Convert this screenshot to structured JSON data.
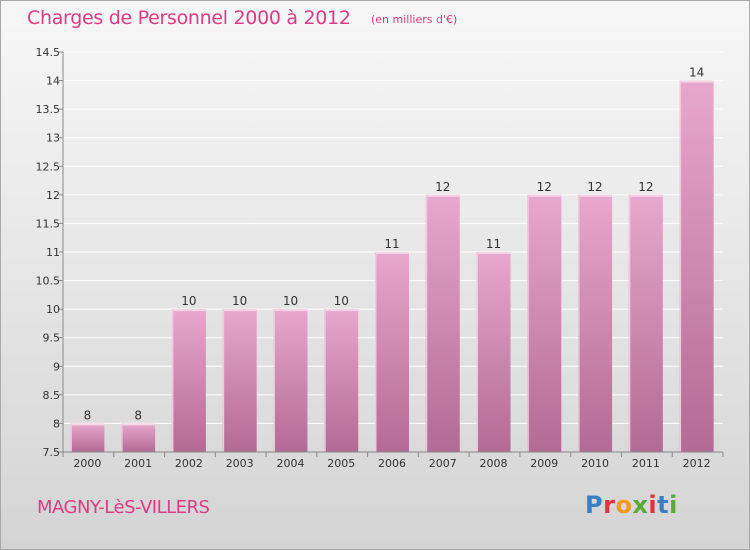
{
  "header": {
    "title": "Charges de Personnel 2000 à 2012",
    "unit": "(en milliers d'€)"
  },
  "footer": {
    "commune": "MAGNY-LèS-VILLERS",
    "logo_text": "Proxiti",
    "logo_colors": [
      "#3a7fc4",
      "#e5303f",
      "#f39a1e",
      "#5aaa3a",
      "#e5303f",
      "#3a7fc4",
      "#5aaa3a"
    ]
  },
  "colors": {
    "title": "#de3b84",
    "bar_top": "#e8a7cc",
    "bar_bottom": "#b26b94",
    "bar_highlight": "#f4d3e6"
  },
  "chart_data": {
    "type": "bar",
    "title": "Charges de Personnel 2000 à 2012",
    "categories": [
      "2000",
      "2001",
      "2002",
      "2003",
      "2004",
      "2005",
      "2006",
      "2007",
      "2008",
      "2009",
      "2010",
      "2011",
      "2012"
    ],
    "values": [
      8,
      8,
      10,
      10,
      10,
      10,
      11,
      12,
      11,
      12,
      12,
      12,
      14
    ],
    "ylim": [
      7.5,
      14.5
    ],
    "yticks": [
      "7.5",
      "8",
      "8.5",
      "9",
      "9.5",
      "10",
      "10.5",
      "11",
      "11.5",
      "12",
      "12.5",
      "13",
      "13.5",
      "14",
      "14.5"
    ],
    "grid": true
  }
}
